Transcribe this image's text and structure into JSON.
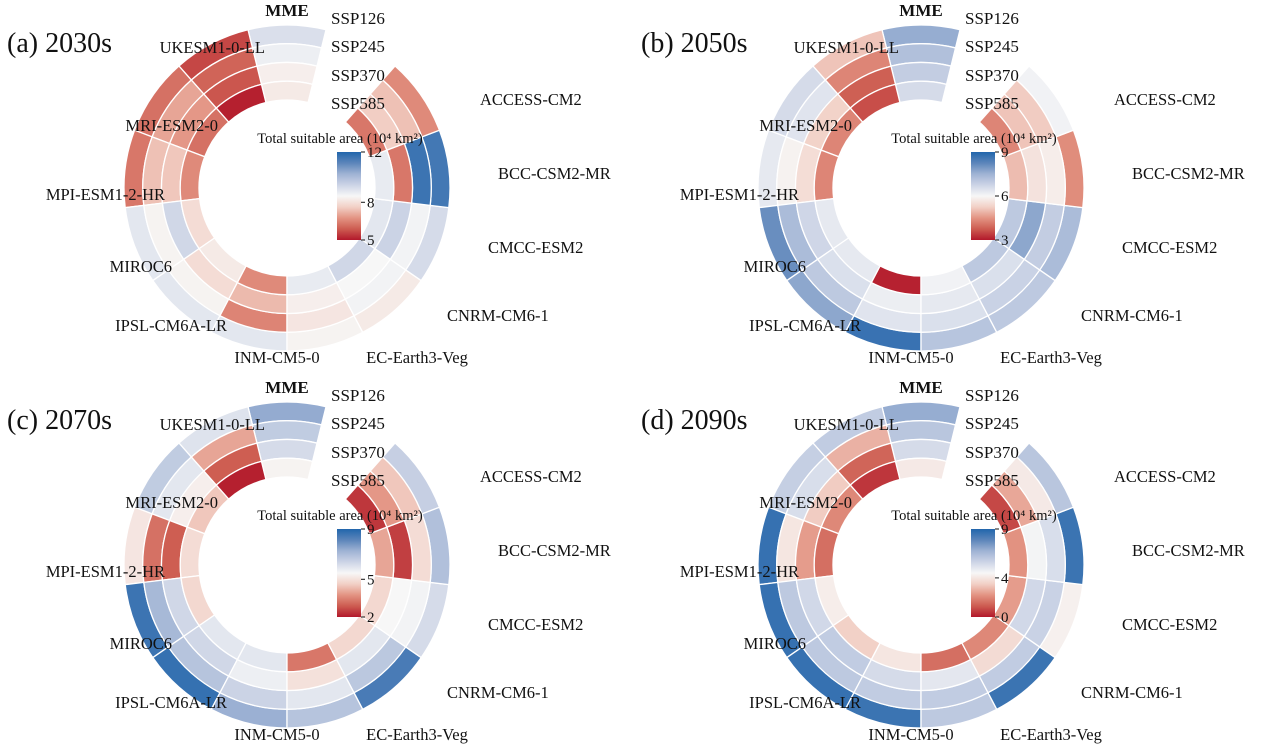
{
  "figure": {
    "background": "#ffffff",
    "colormap": {
      "low": "#b2182b",
      "mid": "#f7f7f7",
      "high": "#2166ac"
    },
    "ring_labels": [
      "SSP126",
      "SSP245",
      "SSP370",
      "SSP585"
    ],
    "model_labels": [
      "MME",
      "UKESM1-0-LL",
      "MRI-ESM2-0",
      "MPI-ESM1-2-HR",
      "MIROC6",
      "IPSL-CM6A-LR",
      "INM-CM5-0",
      "EC-Earth3-Veg",
      "CNRM-CM6-1",
      "CMCC-ESM2",
      "BCC-CSM2-MR",
      "ACCESS-CM2"
    ]
  },
  "chart_data": [
    {
      "type": "heatmap",
      "layout": "polar-donut",
      "title": "(a) 2030s",
      "colorbar": {
        "title": "Total suitable area (10⁴ km²)",
        "min": 5,
        "mid_tick": 8,
        "max": 12
      },
      "rings": [
        "SSP126",
        "SSP245",
        "SSP370",
        "SSP585"
      ],
      "series": [
        {
          "name": "MME",
          "values": [
            9.1,
            8.7,
            8.3,
            8.2
          ]
        },
        {
          "name": "UKESM1-0-LL",
          "values": [
            5.6,
            6.0,
            5.8,
            5.1
          ]
        },
        {
          "name": "MRI-ESM2-0",
          "values": [
            6.2,
            7.0,
            6.8,
            6.2
          ]
        },
        {
          "name": "MPI-ESM1-2-HR",
          "values": [
            6.3,
            7.4,
            7.5,
            6.6
          ]
        },
        {
          "name": "MIROC6",
          "values": [
            8.9,
            8.4,
            9.3,
            7.9
          ]
        },
        {
          "name": "IPSL-CM6A-LR",
          "values": [
            8.9,
            8.4,
            7.9,
            8.2
          ]
        },
        {
          "name": "INM-CM5-0",
          "values": [
            8.9,
            6.5,
            7.3,
            6.6
          ]
        },
        {
          "name": "EC-Earth3-Veg",
          "values": [
            8.4,
            8.1,
            8.3,
            8.8
          ]
        },
        {
          "name": "CNRM-CM6-1",
          "values": [
            8.2,
            8.6,
            8.5,
            9.3
          ]
        },
        {
          "name": "CMCC-ESM2",
          "values": [
            9.2,
            8.6,
            9.4,
            8.9
          ]
        },
        {
          "name": "BCC-CSM2-MR",
          "values": [
            11.5,
            11.6,
            6.3,
            8.8
          ]
        },
        {
          "name": "ACCESS-CM2",
          "values": [
            6.6,
            7.4,
            7.6,
            6.3
          ]
        }
      ]
    },
    {
      "type": "heatmap",
      "layout": "polar-donut",
      "title": "(b) 2050s",
      "colorbar": {
        "title": "Total suitable area (10⁴ km²)",
        "min": 3,
        "mid_tick": 6,
        "max": 9
      },
      "rings": [
        "SSP126",
        "SSP245",
        "SSP370",
        "SSP585"
      ],
      "series": [
        {
          "name": "MME",
          "values": [
            7.6,
            7.2,
            6.9,
            6.6
          ]
        },
        {
          "name": "UKESM1-0-LL",
          "values": [
            5.1,
            4.3,
            3.8,
            3.6
          ]
        },
        {
          "name": "MRI-ESM2-0",
          "values": [
            6.6,
            6.4,
            5.3,
            4.3
          ]
        },
        {
          "name": "MPI-ESM1-2-HR",
          "values": [
            6.3,
            5.9,
            5.5,
            4.3
          ]
        },
        {
          "name": "MIROC6",
          "values": [
            8.1,
            7.3,
            6.7,
            6.3
          ]
        },
        {
          "name": "IPSL-CM6A-LR",
          "values": [
            7.7,
            7.0,
            6.5,
            6.3
          ]
        },
        {
          "name": "INM-CM5-0",
          "values": [
            8.7,
            6.4,
            6.2,
            3.1
          ]
        },
        {
          "name": "EC-Earth3-Veg",
          "values": [
            7.1,
            6.5,
            6.3,
            6.1
          ]
        },
        {
          "name": "CNRM-CM6-1",
          "values": [
            7.0,
            6.8,
            6.5,
            7.0
          ]
        },
        {
          "name": "CMCC-ESM2",
          "values": [
            7.3,
            6.9,
            7.7,
            7.0
          ]
        },
        {
          "name": "BCC-CSM2-MR",
          "values": [
            4.4,
            5.8,
            5.6,
            5.0
          ]
        },
        {
          "name": "ACCESS-CM2",
          "values": [
            6.1,
            5.2,
            5.1,
            4.3
          ]
        }
      ]
    },
    {
      "type": "heatmap",
      "layout": "polar-donut",
      "title": "(c) 2070s",
      "colorbar": {
        "title": "Total suitable area (10⁴ km²)",
        "min": 2,
        "mid_tick": 5,
        "max": 9
      },
      "rings": [
        "SSP126",
        "SSP245",
        "SSP370",
        "SSP585"
      ],
      "series": [
        {
          "name": "MME",
          "values": [
            7.4,
            6.6,
            6.2,
            5.4
          ]
        },
        {
          "name": "UKESM1-0-LL",
          "values": [
            6.0,
            4.0,
            2.9,
            2.1
          ]
        },
        {
          "name": "MRI-ESM2-0",
          "values": [
            6.6,
            5.9,
            5.3,
            4.5
          ]
        },
        {
          "name": "MPI-ESM1-2-HR",
          "values": [
            5.1,
            3.2,
            2.9,
            4.9
          ]
        },
        {
          "name": "MIROC6",
          "values": [
            8.6,
            7.1,
            6.3,
            4.8
          ]
        },
        {
          "name": "IPSL-CM6A-LR",
          "values": [
            8.7,
            6.8,
            6.3,
            5.9
          ]
        },
        {
          "name": "INM-CM5-0",
          "values": [
            7.3,
            6.4,
            5.7,
            5.9
          ]
        },
        {
          "name": "EC-Earth3-Veg",
          "values": [
            6.8,
            5.9,
            5.0,
            3.3
          ]
        },
        {
          "name": "CNRM-CM6-1",
          "values": [
            8.4,
            6.7,
            5.9,
            4.8
          ]
        },
        {
          "name": "CMCC-ESM2",
          "values": [
            6.2,
            5.6,
            5.5,
            4.8
          ]
        },
        {
          "name": "BCC-CSM2-MR",
          "values": [
            6.9,
            4.9,
            2.5,
            4.0
          ]
        },
        {
          "name": "ACCESS-CM2",
          "values": [
            6.5,
            4.5,
            3.8,
            2.4
          ]
        }
      ]
    },
    {
      "type": "heatmap",
      "layout": "polar-donut",
      "title": "(d) 2090s",
      "colorbar": {
        "title": "Total suitable area (10⁴ km²)",
        "min": 0,
        "mid_tick": 4,
        "max": 9
      },
      "rings": [
        "SSP126",
        "SSP245",
        "SSP370",
        "SSP585"
      ],
      "series": [
        {
          "name": "MME",
          "values": [
            6.9,
            6.1,
            5.4,
            4.1
          ]
        },
        {
          "name": "UKESM1-0-LL",
          "values": [
            5.9,
            2.8,
            1.3,
            0.5
          ]
        },
        {
          "name": "MRI-ESM2-0",
          "values": [
            5.8,
            5.3,
            3.3,
            2.0
          ]
        },
        {
          "name": "MPI-ESM1-2-HR",
          "values": [
            8.6,
            4.0,
            2.4,
            1.5
          ]
        },
        {
          "name": "MIROC6",
          "values": [
            8.6,
            6.0,
            5.5,
            4.2
          ]
        },
        {
          "name": "IPSL-CM6A-LR",
          "values": [
            8.6,
            6.0,
            5.9,
            3.4
          ]
        },
        {
          "name": "INM-CM5-0",
          "values": [
            8.5,
            5.9,
            5.4,
            4.0
          ]
        },
        {
          "name": "EC-Earth3-Veg",
          "values": [
            6.0,
            5.9,
            5.0,
            1.5
          ]
        },
        {
          "name": "CNRM-CM6-1",
          "values": [
            8.5,
            5.9,
            3.7,
            2.0
          ]
        },
        {
          "name": "CMCC-ESM2",
          "values": [
            4.3,
            5.7,
            5.5,
            2.4
          ]
        },
        {
          "name": "BCC-CSM2-MR",
          "values": [
            8.5,
            5.3,
            4.6,
            2.2
          ]
        },
        {
          "name": "ACCESS-CM2",
          "values": [
            6.1,
            4.1,
            2.6,
            0.8
          ]
        }
      ]
    }
  ]
}
